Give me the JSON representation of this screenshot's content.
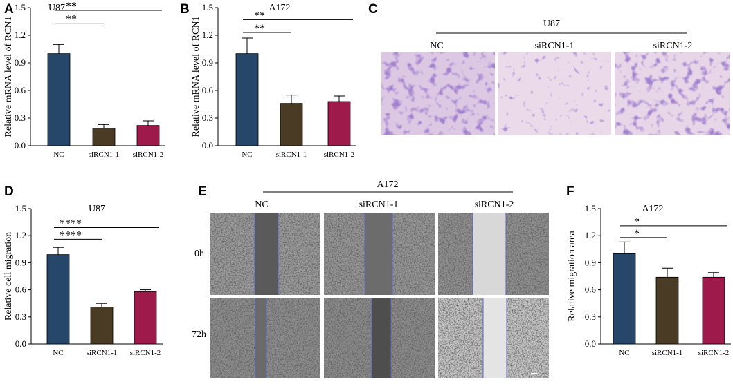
{
  "panel_letters": [
    "A",
    "B",
    "C",
    "D",
    "E",
    "F"
  ],
  "colors": {
    "NC": "#26476a",
    "siRCN1-1": "#4a3c24",
    "siRCN1-2": "#9e1a4a",
    "axis": "#000000"
  },
  "chart_data": [
    {
      "panel": "A",
      "type": "bar",
      "title": "U87",
      "ylabel": "Relative mRNA level of RCN1",
      "xlabel": "",
      "categories": [
        "NC",
        "siRCN1-1",
        "siRCN1-2"
      ],
      "values": [
        1.0,
        0.19,
        0.22
      ],
      "errors": [
        0.1,
        0.04,
        0.05
      ],
      "ylim": [
        0,
        1.5
      ],
      "yticks": [
        "0.0",
        "0.3",
        "0.6",
        "0.9",
        "1.2",
        "1.5"
      ],
      "significance": [
        {
          "from": 0,
          "to": 1,
          "label": "**",
          "level": 1.33
        },
        {
          "from": 0,
          "to": 2,
          "label": "**",
          "level": 1.47
        }
      ]
    },
    {
      "panel": "B",
      "type": "bar",
      "title": "A172",
      "ylabel": "Relative mRNA level of RCN1",
      "xlabel": "",
      "categories": [
        "NC",
        "siRCN1-1",
        "siRCN1-2"
      ],
      "values": [
        1.0,
        0.46,
        0.48
      ],
      "errors": [
        0.17,
        0.09,
        0.06
      ],
      "ylim": [
        0,
        1.5
      ],
      "yticks": [
        "0.0",
        "0.3",
        "0.6",
        "0.9",
        "1.2",
        "1.5"
      ],
      "significance": [
        {
          "from": 0,
          "to": 1,
          "label": "**",
          "level": 1.23
        },
        {
          "from": 0,
          "to": 2,
          "label": "**",
          "level": 1.37
        }
      ]
    },
    {
      "panel": "D",
      "type": "bar",
      "title": "U87",
      "ylabel": "Relative cell migration",
      "xlabel": "",
      "categories": [
        "NC",
        "siRCN1-1",
        "siRCN1-2"
      ],
      "values": [
        0.99,
        0.41,
        0.58
      ],
      "errors": [
        0.08,
        0.04,
        0.02
      ],
      "ylim": [
        0,
        1.5
      ],
      "yticks": [
        "0.0",
        "0.3",
        "0.6",
        "0.9",
        "1.2",
        "1.5"
      ],
      "significance": [
        {
          "from": 0,
          "to": 1,
          "label": "****",
          "level": 1.16
        },
        {
          "from": 0,
          "to": 2,
          "label": "****",
          "level": 1.29
        }
      ]
    },
    {
      "panel": "F",
      "type": "bar",
      "title": "A172",
      "ylabel": "Relative  migration area",
      "xlabel": "",
      "categories": [
        "NC",
        "siRCN1-1",
        "siRCN1-2"
      ],
      "values": [
        1.0,
        0.74,
        0.74
      ],
      "errors": [
        0.13,
        0.1,
        0.05
      ],
      "ylim": [
        0,
        1.5
      ],
      "yticks": [
        "0.0",
        "0.3",
        "0.6",
        "0.9",
        "1.2",
        "1.5"
      ],
      "significance": [
        {
          "from": 0,
          "to": 1,
          "label": "*",
          "level": 1.18
        },
        {
          "from": 0,
          "to": 2,
          "label": "*",
          "level": 1.31
        }
      ]
    }
  ],
  "panel_c": {
    "title": "U87",
    "labels": [
      "NC",
      "siRCN1-1",
      "siRCN1-2"
    ]
  },
  "panel_e": {
    "title": "A172",
    "labels": [
      "NC",
      "siRCN1-1",
      "siRCN1-2"
    ],
    "rows": [
      "0h",
      "72h"
    ]
  }
}
